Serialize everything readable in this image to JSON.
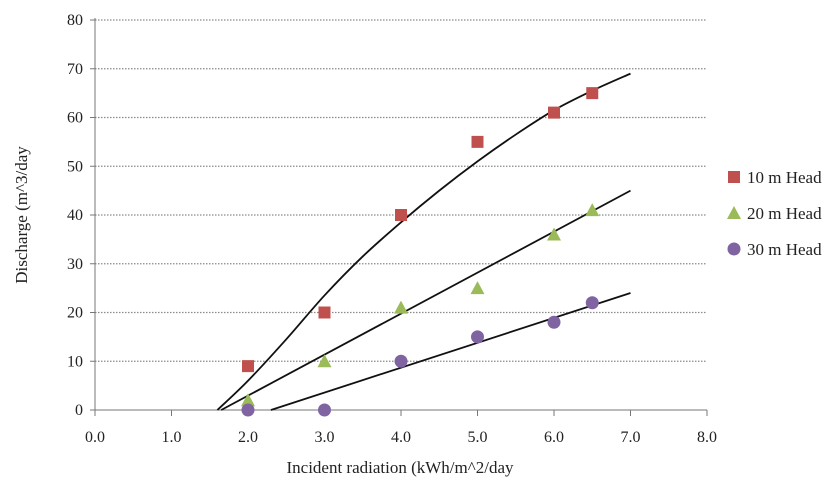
{
  "chart_data": {
    "type": "scatter",
    "xlabel": "Incident radiation (kWh/m^2/day",
    "ylabel": "Discharge (m^3/day",
    "xlim": [
      0,
      8
    ],
    "ylim": [
      0,
      80
    ],
    "x_ticks": [
      "0.0",
      "1.0",
      "2.0",
      "3.0",
      "4.0",
      "5.0",
      "6.0",
      "7.0",
      "8.0"
    ],
    "y_ticks": [
      "0",
      "10",
      "20",
      "30",
      "40",
      "50",
      "60",
      "70",
      "80"
    ],
    "grid": "horizontal-dotted",
    "legend_position": "right",
    "series": [
      {
        "name": "10 m Head",
        "marker": "square",
        "color": "#c0504d",
        "points": [
          [
            2.0,
            9
          ],
          [
            3.0,
            20
          ],
          [
            4.0,
            40
          ],
          [
            5.0,
            55
          ],
          [
            6.0,
            61
          ],
          [
            6.5,
            65
          ]
        ]
      },
      {
        "name": "20 m Head",
        "marker": "triangle",
        "color": "#9bbb59",
        "points": [
          [
            2.0,
            2
          ],
          [
            3.0,
            10
          ],
          [
            4.0,
            21
          ],
          [
            5.0,
            25
          ],
          [
            6.0,
            36
          ],
          [
            6.5,
            41
          ]
        ]
      },
      {
        "name": "30 m Head",
        "marker": "circle",
        "color": "#8064a2",
        "points": [
          [
            2.0,
            0
          ],
          [
            3.0,
            0
          ],
          [
            4.0,
            10
          ],
          [
            5.0,
            15
          ],
          [
            6.0,
            18
          ],
          [
            6.5,
            22
          ]
        ]
      }
    ],
    "trendlines": [
      {
        "series": "10 m Head",
        "points": [
          [
            1.6,
            0
          ],
          [
            2.0,
            6
          ],
          [
            2.5,
            14.5
          ],
          [
            3.0,
            23.5
          ],
          [
            3.5,
            31.5
          ],
          [
            4.0,
            38.5
          ],
          [
            4.5,
            45
          ],
          [
            5.0,
            51
          ],
          [
            5.5,
            56.5
          ],
          [
            6.0,
            61.5
          ],
          [
            6.5,
            65.5
          ],
          [
            7.0,
            69
          ]
        ]
      },
      {
        "series": "20 m Head",
        "points": [
          [
            1.65,
            0
          ],
          [
            7.0,
            45
          ]
        ]
      },
      {
        "series": "30 m Head",
        "points": [
          [
            2.3,
            0
          ],
          [
            7.0,
            24
          ]
        ]
      }
    ]
  }
}
